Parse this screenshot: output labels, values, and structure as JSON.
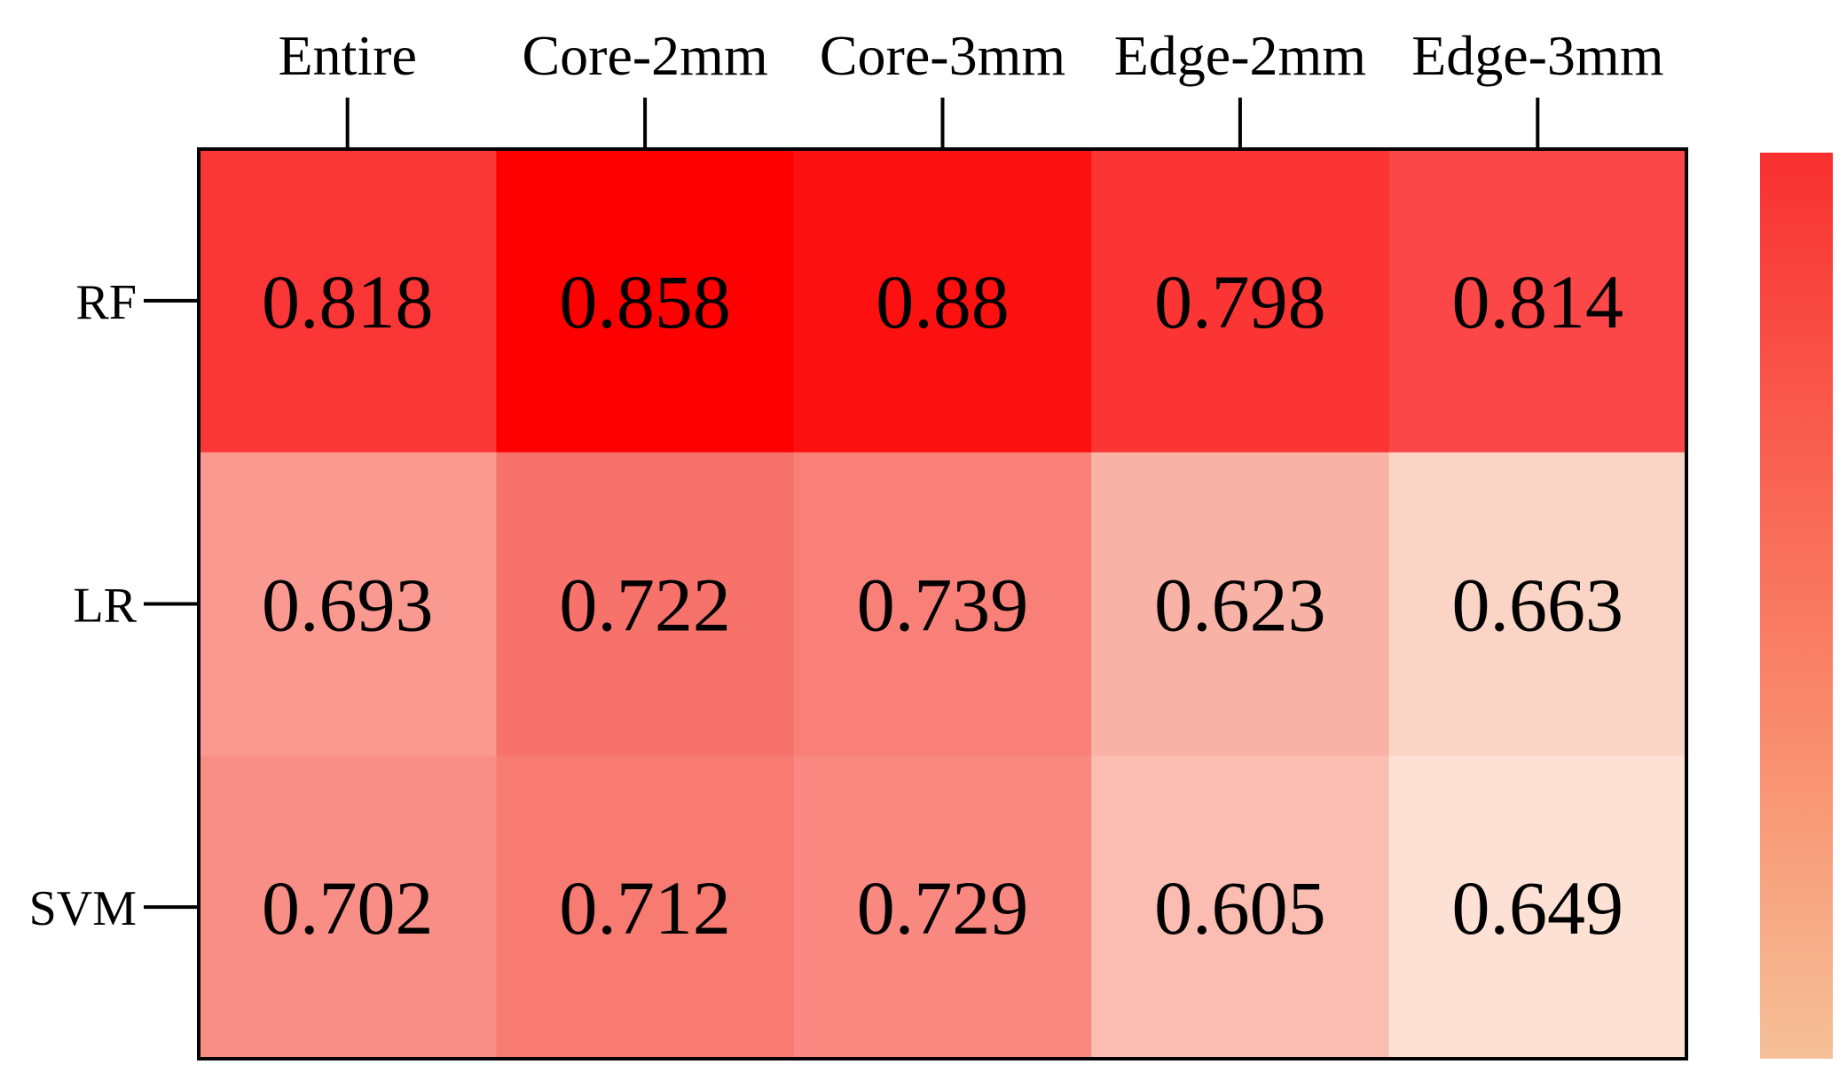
{
  "chart_data": {
    "type": "heatmap",
    "columns": [
      "Entire",
      "Core-2mm",
      "Core-3mm",
      "Edge-2mm",
      "Edge-3mm"
    ],
    "rows": [
      "RF",
      "LR",
      "SVM"
    ],
    "values": [
      [
        "0.818",
        "0.858",
        "0.88",
        "0.798",
        "0.814"
      ],
      [
        "0.693",
        "0.722",
        "0.739",
        "0.623",
        "0.663"
      ],
      [
        "0.702",
        "0.712",
        "0.729",
        "0.605",
        "0.649"
      ]
    ],
    "cell_colors": [
      [
        "#fa3636",
        "#fe0000",
        "#fc1010",
        "#fb3434",
        "#fb4747"
      ],
      [
        "#f99990",
        "#f7726a",
        "#f88078",
        "#f9b3a6",
        "#fad4c5"
      ],
      [
        "#f98e87",
        "#f77b71",
        "#f88880",
        "#fbbdb1",
        "#fce1d4"
      ]
    ],
    "colorbar": {
      "colors": [
        "#f83030",
        "#f96050",
        "#f99070",
        "#f5c098"
      ],
      "tick_labels": []
    },
    "title": "",
    "xlabel": "",
    "ylabel": ""
  }
}
